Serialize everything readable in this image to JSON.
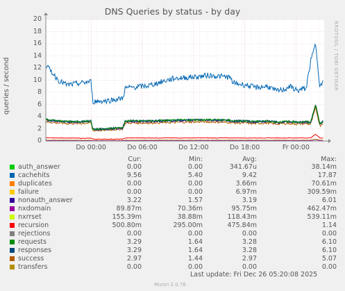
{
  "chart_data": {
    "type": "line",
    "title": "DNS Queries by status - by day",
    "ylabel": "queries / second",
    "ylim": [
      0,
      20
    ],
    "yticks": [
      0,
      2,
      4,
      6,
      8,
      10,
      12,
      14,
      16,
      18,
      20
    ],
    "xticks": [
      "Do 00:00",
      "Do 06:00",
      "Do 12:00",
      "Do 18:00",
      "Fr 00:00"
    ],
    "watermark": "RRDTOOL / TOBI OETIKER",
    "columns": [
      "Cur:",
      "Min:",
      "Avg:",
      "Max:"
    ],
    "legend": [
      {
        "name": "auth_answer",
        "color": "#00cc00",
        "cur": "0.00",
        "min": "0.00",
        "avg": "341.67u",
        "max": "38.14m"
      },
      {
        "name": "cachehits",
        "color": "#0066b3",
        "cur": "9.56",
        "min": "5.40",
        "avg": "9.42",
        "max": "17.87"
      },
      {
        "name": "duplicates",
        "color": "#ff8000",
        "cur": "0.00",
        "min": "0.00",
        "avg": "3.66m",
        "max": "70.61m"
      },
      {
        "name": "failure",
        "color": "#ffcc00",
        "cur": "0.00",
        "min": "0.00",
        "avg": "6.97m",
        "max": "309.59m"
      },
      {
        "name": "nonauth_answer",
        "color": "#330099",
        "cur": "3.22",
        "min": "1.57",
        "avg": "3.19",
        "max": "6.01"
      },
      {
        "name": "nxdomain",
        "color": "#990099",
        "cur": "89.87m",
        "min": "70.36m",
        "avg": "95.75m",
        "max": "462.47m"
      },
      {
        "name": "nxrrset",
        "color": "#ccff00",
        "cur": "155.39m",
        "min": "38.88m",
        "avg": "118.43m",
        "max": "539.11m"
      },
      {
        "name": "recursion",
        "color": "#ff0000",
        "cur": "500.80m",
        "min": "295.00m",
        "avg": "475.84m",
        "max": "1.14"
      },
      {
        "name": "rejections",
        "color": "#808080",
        "cur": "0.00",
        "min": "0.00",
        "avg": "0.00",
        "max": "0.00"
      },
      {
        "name": "requests",
        "color": "#008f00",
        "cur": "3.29",
        "min": "1.64",
        "avg": "3.28",
        "max": "6.10"
      },
      {
        "name": "responses",
        "color": "#00487d",
        "cur": "3.29",
        "min": "1.64",
        "avg": "3.28",
        "max": "6.10"
      },
      {
        "name": "success",
        "color": "#b35a00",
        "cur": "2.97",
        "min": "1.44",
        "avg": "2.97",
        "max": "5.07"
      },
      {
        "name": "transfers",
        "color": "#b38f00",
        "cur": "0.00",
        "min": "0.00",
        "avg": "0.00",
        "max": "0.00"
      }
    ],
    "series_profile": {
      "x_hours": [
        0,
        1.5,
        2.5,
        4,
        5.3,
        5.5,
        7,
        8,
        9,
        9.3,
        12,
        15,
        18,
        19,
        21.5,
        22,
        23,
        23.5,
        24,
        24.5,
        26,
        27,
        28,
        28.5,
        29.5,
        30.5,
        31,
        31.6,
        32.1,
        32.5
      ],
      "cachehits": [
        12.5,
        10,
        9.2,
        9.5,
        9.8,
        6.5,
        6.6,
        6.8,
        7.0,
        8.7,
        9.1,
        10.3,
        10.6,
        10.8,
        10.5,
        9.5,
        9.3,
        9.2,
        9.0,
        8.8,
        9.0,
        8.2,
        8.5,
        9.0,
        8.3,
        8.7,
        13,
        16,
        9.0,
        9.6
      ],
      "requests": [
        3.5,
        3.3,
        3.2,
        3.2,
        3.3,
        1.9,
        2.0,
        2.1,
        2.2,
        3.3,
        3.3,
        3.4,
        3.5,
        3.5,
        3.4,
        3.3,
        3.3,
        3.3,
        3.2,
        3.2,
        3.3,
        3.1,
        3.2,
        3.2,
        3.1,
        3.2,
        3.0,
        6.0,
        2.8,
        3.3
      ],
      "recursion": [
        0.5,
        0.5,
        0.5,
        0.45,
        0.45,
        0.3,
        0.3,
        0.3,
        0.3,
        0.5,
        0.5,
        0.5,
        0.5,
        0.5,
        0.5,
        0.5,
        0.5,
        0.5,
        0.5,
        0.5,
        0.5,
        0.5,
        0.5,
        0.5,
        0.5,
        0.5,
        0.5,
        1.1,
        0.5,
        0.5
      ]
    }
  },
  "footer": {
    "last_update": "Last update: Fri Dec 26 05:20:08 2025",
    "generator": "Munin 2.0.76"
  }
}
